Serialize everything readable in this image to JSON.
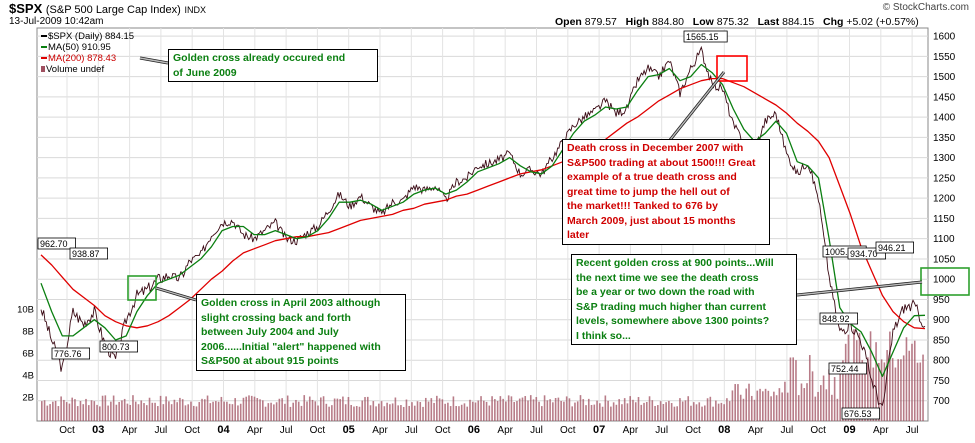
{
  "header": {
    "symbol": "$SPX",
    "name": "(S&P 500 Large Cap Index)",
    "exchange": "INDX",
    "date": "13-Jul-2009 10:42am",
    "open_label": "Open",
    "open": "879.57",
    "high_label": "High",
    "high": "884.80",
    "low_label": "Low",
    "low": "875.32",
    "last_label": "Last",
    "last": "884.15",
    "chg_label": "Chg",
    "chg": "+5.02 (+0.57%)",
    "logo": "© StockCharts.com"
  },
  "legend": {
    "price": "$SPX (Daily) 884.15",
    "ma50": "MA(50) 910.95",
    "ma200": "MA(200) 878.43",
    "volume": "Volume undef"
  },
  "colors": {
    "price": "#000000",
    "ma50": "#0a7f10",
    "ma200": "#e00000",
    "volume": "#a05060",
    "annotation_green": "#0a7f10",
    "annotation_red": "#d00000",
    "highlight_red": "#ff0000",
    "highlight_green": "#2ea02e"
  },
  "annotations": {
    "golden_2009": [
      "Golden cross already occured end",
      "of June 2009"
    ],
    "golden_2003": [
      "Golden cross in April 2003 although",
      "slight crossing back and forth",
      "between July 2004 and July",
      "2006......Initial \"alert\" happened with",
      "S&P500 at about 915 points"
    ],
    "death_2007": [
      "Death cross in December 2007 with",
      "S&P500 trading at about 1500!!! Great",
      "example of a true death cross and",
      "great time to jump the hell out of",
      "the market!!! Tanked to 676 by",
      "March 2009, just about 15 months",
      "later"
    ],
    "recent": [
      "Recent golden cross at 900 points...Will",
      "the next time we see the death cross",
      "be a year or two down the road with",
      "S&P trading much higher than current",
      "levels, somewhere above 1300 points?",
      "I think so..."
    ]
  },
  "chart_data": {
    "type": "line",
    "title": "$SPX (S&P 500 Large Cap Index) INDX",
    "x_ticks": [
      "Oct",
      "03",
      "Apr",
      "Jul",
      "Oct",
      "04",
      "Apr",
      "Jul",
      "Oct",
      "05",
      "Apr",
      "Jul",
      "Oct",
      "06",
      "Apr",
      "Jul",
      "Oct",
      "07",
      "Apr",
      "Jul",
      "Oct",
      "08",
      "Apr",
      "Jul",
      "Oct",
      "09",
      "Apr",
      "Jul"
    ],
    "y_ticks": [
      700,
      750,
      800,
      850,
      900,
      950,
      1000,
      1050,
      1100,
      1150,
      1200,
      1250,
      1300,
      1350,
      1400,
      1450,
      1500,
      1550,
      1600
    ],
    "ylim": [
      650,
      1620
    ],
    "volume_ticks": [
      "2B",
      "4B",
      "6B",
      "8B",
      "10B"
    ],
    "series": [
      {
        "name": "$SPX (Daily)",
        "x": [
          "2002-08",
          "2002-09",
          "2002-10",
          "2002-11",
          "2002-12",
          "2003-01",
          "2003-02",
          "2003-03",
          "2003-04",
          "2003-05",
          "2003-06",
          "2003-07",
          "2003-08",
          "2003-09",
          "2003-10",
          "2003-11",
          "2003-12",
          "2004-01",
          "2004-02",
          "2004-03",
          "2004-04",
          "2004-05",
          "2004-06",
          "2004-07",
          "2004-08",
          "2004-09",
          "2004-10",
          "2004-11",
          "2004-12",
          "2005-01",
          "2005-02",
          "2005-03",
          "2005-04",
          "2005-05",
          "2005-06",
          "2005-07",
          "2005-08",
          "2005-09",
          "2005-10",
          "2005-11",
          "2005-12",
          "2006-01",
          "2006-02",
          "2006-03",
          "2006-04",
          "2006-05",
          "2006-06",
          "2006-07",
          "2006-08",
          "2006-09",
          "2006-10",
          "2006-11",
          "2006-12",
          "2007-01",
          "2007-02",
          "2007-03",
          "2007-04",
          "2007-05",
          "2007-06",
          "2007-07",
          "2007-08",
          "2007-09",
          "2007-10",
          "2007-11",
          "2007-12",
          "2008-01",
          "2008-02",
          "2008-03",
          "2008-04",
          "2008-05",
          "2008-06",
          "2008-07",
          "2008-08",
          "2008-09",
          "2008-10",
          "2008-11",
          "2008-12",
          "2009-01",
          "2009-02",
          "2009-03",
          "2009-04",
          "2009-05",
          "2009-06",
          "2009-07"
        ],
        "values": [
          930,
          850,
          777,
          920,
          890,
          920,
          840,
          801,
          900,
          960,
          975,
          1000,
          1010,
          1000,
          1045,
          1060,
          1110,
          1140,
          1145,
          1110,
          1100,
          1120,
          1140,
          1100,
          1095,
          1115,
          1130,
          1170,
          1210,
          1180,
          1205,
          1180,
          1160,
          1190,
          1195,
          1230,
          1220,
          1230,
          1195,
          1240,
          1250,
          1280,
          1285,
          1295,
          1310,
          1260,
          1270,
          1260,
          1300,
          1340,
          1380,
          1400,
          1415,
          1440,
          1410,
          1420,
          1490,
          1520,
          1500,
          1540,
          1460,
          1520,
          1565,
          1480,
          1470,
          1380,
          1340,
          1320,
          1390,
          1410,
          1310,
          1260,
          1290,
          1200,
          1006,
          870,
          890,
          850,
          752,
          677,
          870,
          930,
          935,
          884
        ]
      },
      {
        "name": "MA(50)",
        "values": [
          990,
          920,
          860,
          860,
          880,
          900,
          880,
          850,
          860,
          920,
          960,
          990,
          1000,
          1010,
          1030,
          1050,
          1080,
          1120,
          1130,
          1130,
          1110,
          1110,
          1120,
          1110,
          1100,
          1105,
          1120,
          1150,
          1190,
          1190,
          1195,
          1185,
          1170,
          1180,
          1190,
          1210,
          1220,
          1225,
          1210,
          1220,
          1240,
          1265,
          1275,
          1285,
          1300,
          1280,
          1265,
          1260,
          1280,
          1320,
          1360,
          1390,
          1405,
          1425,
          1420,
          1425,
          1465,
          1500,
          1505,
          1520,
          1490,
          1500,
          1530,
          1510,
          1480,
          1420,
          1370,
          1340,
          1360,
          1390,
          1360,
          1290,
          1280,
          1250,
          1100,
          930,
          890,
          870,
          820,
          760,
          820,
          880,
          910,
          911
        ]
      },
      {
        "name": "MA(200)",
        "values": [
          1060,
          1035,
          1005,
          975,
          955,
          935,
          910,
          895,
          885,
          880,
          885,
          895,
          910,
          930,
          950,
          975,
          1000,
          1020,
          1045,
          1065,
          1075,
          1085,
          1095,
          1100,
          1105,
          1105,
          1110,
          1115,
          1125,
          1135,
          1145,
          1150,
          1155,
          1160,
          1170,
          1175,
          1185,
          1190,
          1195,
          1205,
          1210,
          1220,
          1230,
          1240,
          1250,
          1260,
          1265,
          1270,
          1280,
          1290,
          1300,
          1315,
          1330,
          1345,
          1365,
          1385,
          1400,
          1420,
          1440,
          1455,
          1470,
          1480,
          1490,
          1495,
          1495,
          1485,
          1475,
          1460,
          1445,
          1430,
          1410,
          1385,
          1365,
          1340,
          1300,
          1230,
          1160,
          1080,
          1020,
          960,
          920,
          895,
          880,
          878
        ]
      }
    ],
    "price_labels": [
      "962.70",
      "938.87",
      "776.76",
      "800.73",
      "1565.15",
      "1005.75",
      "934.70",
      "848.92",
      "752.44",
      "676.53",
      "946.21"
    ],
    "grid": true,
    "legend_position": "top-left"
  }
}
